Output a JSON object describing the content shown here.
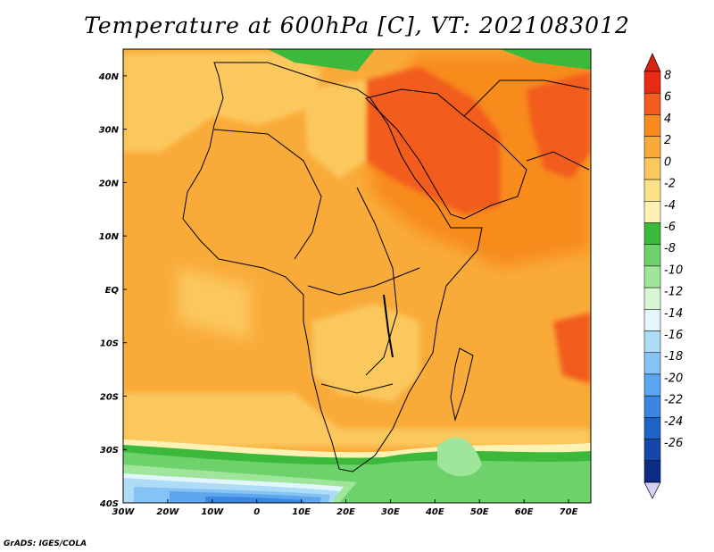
{
  "title": "Temperature at 600hPa [C], VT: 2021083012",
  "credit": "GrADS: IGES/COLA",
  "map": {
    "lon_range": [
      -30,
      75
    ],
    "lat_range": [
      -40,
      45
    ],
    "x_ticks": [
      "30W",
      "20W",
      "10W",
      "0",
      "10E",
      "20E",
      "30E",
      "40E",
      "50E",
      "60E",
      "70E"
    ],
    "y_ticks": [
      "40N",
      "30N",
      "20N",
      "10N",
      "EQ",
      "10S",
      "20S",
      "30S",
      "40S"
    ]
  },
  "colorbar": {
    "labels": [
      "8",
      "6",
      "4",
      "2",
      "0",
      "-2",
      "-4",
      "-6",
      "-8",
      "-10",
      "-12",
      "-14",
      "-16",
      "-18",
      "-20",
      "-22",
      "-24",
      "-26"
    ],
    "colors": [
      "#e62c14",
      "#f25c1e",
      "#f78b1f",
      "#f9ab3a",
      "#fbc85d",
      "#fde08a",
      "#fdf2b4",
      "#3cb93b",
      "#6ed26c",
      "#9fe59b",
      "#d6f7d2",
      "#e3f6fb",
      "#aedcf7",
      "#84c3f3",
      "#5ba6ec",
      "#3b86e0",
      "#1e63c6",
      "#1546a8",
      "#0d2b84"
    ],
    "top_color": "#d8250f",
    "bottom_color": "#d8d0f3"
  }
}
